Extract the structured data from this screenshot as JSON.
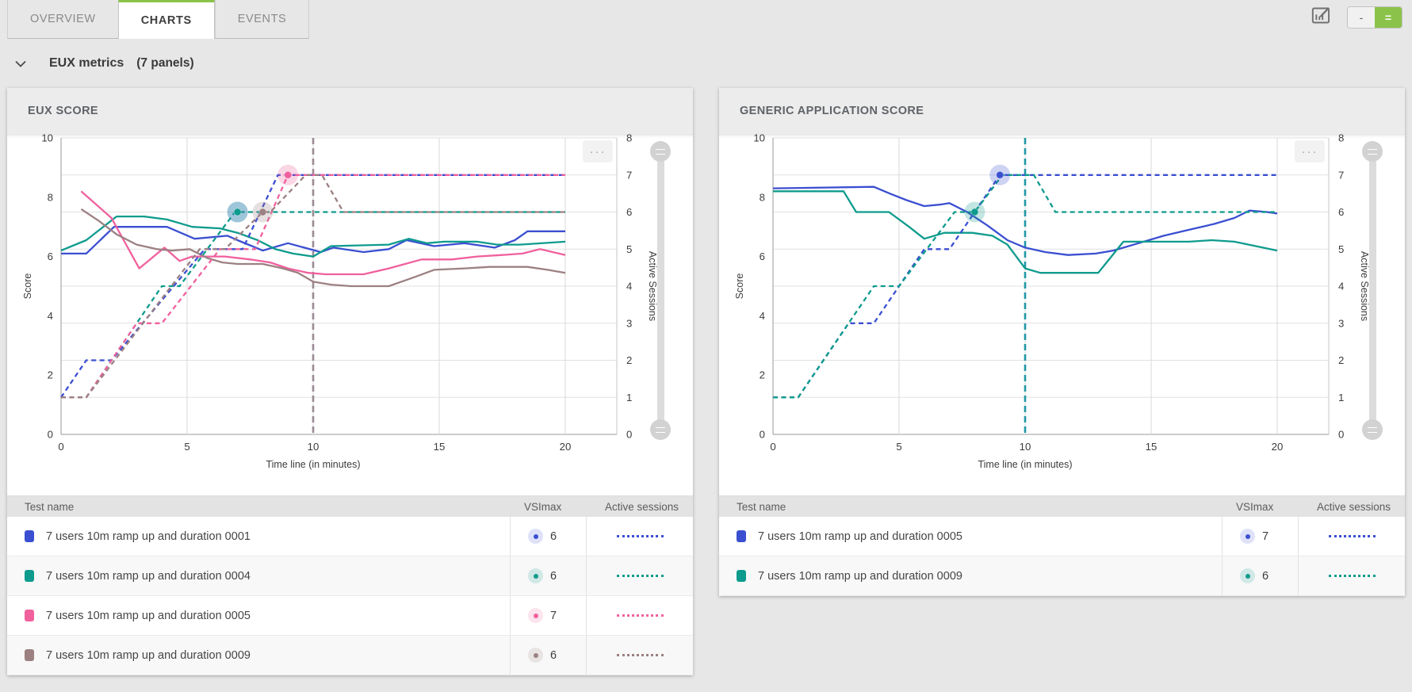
{
  "tabs": [
    {
      "label": "OVERVIEW",
      "active": false
    },
    {
      "label": "CHARTS",
      "active": true
    },
    {
      "label": "EVENTS",
      "active": false
    }
  ],
  "toolbar": {
    "layout_toggle": [
      {
        "label": "-",
        "active": false
      },
      {
        "label": "=",
        "active": true
      }
    ]
  },
  "section": {
    "title": "EUX metrics",
    "count": "(7 panels)"
  },
  "icons": {
    "menu": "···"
  },
  "colors": {
    "blue": "#3b4fd1",
    "teal": "#0e9b8d",
    "pink": "#f0609d",
    "brown": "#9c8082",
    "green": "#8bc34a",
    "vline_left": "#9b8b95",
    "vline_right": "#1f97a6"
  },
  "table_headers": {
    "test_name": "Test name",
    "vsimax": "VSImax",
    "active_sessions": "Active sessions"
  },
  "panels": [
    {
      "title": "EUX SCORE",
      "chart_index": 0,
      "rows": [
        {
          "color": "blue",
          "label": "7 users 10m ramp up and duration 0001",
          "vsimax": "6"
        },
        {
          "color": "teal",
          "label": "7 users 10m ramp up and duration 0004",
          "vsimax": "6"
        },
        {
          "color": "pink",
          "label": "7 users 10m ramp up and duration 0005",
          "vsimax": "7"
        },
        {
          "color": "brown",
          "label": "7 users 10m ramp up and duration 0009",
          "vsimax": "6"
        }
      ]
    },
    {
      "title": "GENERIC APPLICATION SCORE",
      "chart_index": 1,
      "rows": [
        {
          "color": "blue",
          "label": "7 users 10m ramp up and duration 0005",
          "vsimax": "7"
        },
        {
          "color": "teal",
          "label": "7 users 10m ramp up and duration 0009",
          "vsimax": "6"
        }
      ]
    }
  ],
  "chart_data": [
    {
      "type": "line",
      "title": "EUX SCORE",
      "xlabel": "Time line (in minutes)",
      "xlim": [
        0,
        22
      ],
      "xticks": [
        0,
        5,
        10,
        15,
        20
      ],
      "left_axis": {
        "label": "Score",
        "lim": [
          0,
          10
        ],
        "ticks": [
          0,
          2,
          4,
          6,
          8,
          10
        ]
      },
      "right_axis": {
        "label": "Active Sessions",
        "lim": [
          0,
          8
        ],
        "ticks": [
          0,
          1,
          2,
          3,
          4,
          5,
          6,
          7,
          8
        ]
      },
      "vline": {
        "x": 10,
        "color": "vline_left"
      },
      "series": [
        {
          "name": "7 users 10m ramp up and duration 0001 - score",
          "color": "blue",
          "axis": "left",
          "style": "solid",
          "points": [
            [
              0,
              6.1
            ],
            [
              1,
              6.1
            ],
            [
              2.1,
              7
            ],
            [
              4.2,
              7
            ],
            [
              5.3,
              6.6
            ],
            [
              6.6,
              6.7
            ],
            [
              7,
              6.55
            ],
            [
              8,
              6.2
            ],
            [
              9,
              6.45
            ],
            [
              10.3,
              6.15
            ],
            [
              10.8,
              6.3
            ],
            [
              12,
              6.15
            ],
            [
              13,
              6.25
            ],
            [
              13.7,
              6.55
            ],
            [
              14.8,
              6.35
            ],
            [
              16,
              6.45
            ],
            [
              17.2,
              6.3
            ],
            [
              18,
              6.55
            ],
            [
              18.5,
              6.85
            ],
            [
              20,
              6.85
            ]
          ]
        },
        {
          "name": "7 users 10m ramp up and duration 0004 - score",
          "color": "teal",
          "axis": "left",
          "style": "solid",
          "points": [
            [
              0,
              6.2
            ],
            [
              1,
              6.55
            ],
            [
              2.2,
              7.35
            ],
            [
              3.3,
              7.35
            ],
            [
              4.2,
              7.25
            ],
            [
              5.2,
              7
            ],
            [
              6.3,
              6.95
            ],
            [
              7,
              6.8
            ],
            [
              7.8,
              6.55
            ],
            [
              8.5,
              6.25
            ],
            [
              9.2,
              6.1
            ],
            [
              10,
              6
            ],
            [
              10.7,
              6.35
            ],
            [
              13,
              6.4
            ],
            [
              13.8,
              6.6
            ],
            [
              14.5,
              6.45
            ],
            [
              15.2,
              6.5
            ],
            [
              16.5,
              6.5
            ],
            [
              17.3,
              6.4
            ],
            [
              18.2,
              6.4
            ],
            [
              20,
              6.5
            ]
          ]
        },
        {
          "name": "7 users 10m ramp up and duration 0005 - score",
          "color": "pink",
          "axis": "left",
          "style": "solid",
          "points": [
            [
              0.8,
              8.2
            ],
            [
              2,
              7.3
            ],
            [
              3.1,
              5.6
            ],
            [
              4.1,
              6.3
            ],
            [
              4.7,
              5.85
            ],
            [
              5.2,
              6
            ],
            [
              6.5,
              6
            ],
            [
              7.5,
              5.9
            ],
            [
              8.3,
              5.8
            ],
            [
              9,
              5.6
            ],
            [
              9.8,
              5.45
            ],
            [
              10.5,
              5.4
            ],
            [
              12,
              5.4
            ],
            [
              13,
              5.6
            ],
            [
              14.3,
              5.9
            ],
            [
              15.5,
              5.9
            ],
            [
              16.5,
              6
            ],
            [
              17.5,
              6.05
            ],
            [
              18.3,
              6.1
            ],
            [
              19,
              6.25
            ],
            [
              20,
              6.05
            ]
          ]
        },
        {
          "name": "7 users 10m ramp up and duration 0009 - score",
          "color": "brown",
          "axis": "left",
          "style": "solid",
          "points": [
            [
              0.8,
              7.6
            ],
            [
              1.5,
              7.2
            ],
            [
              2.2,
              6.75
            ],
            [
              3,
              6.4
            ],
            [
              3.8,
              6.25
            ],
            [
              4.4,
              6.2
            ],
            [
              5.1,
              6.25
            ],
            [
              5.8,
              5.95
            ],
            [
              6.4,
              5.8
            ],
            [
              7,
              5.75
            ],
            [
              8,
              5.75
            ],
            [
              8.8,
              5.6
            ],
            [
              9.4,
              5.45
            ],
            [
              10,
              5.15
            ],
            [
              10.7,
              5.05
            ],
            [
              11.5,
              5
            ],
            [
              13,
              5
            ],
            [
              14,
              5.3
            ],
            [
              14.8,
              5.55
            ],
            [
              16,
              5.6
            ],
            [
              17,
              5.65
            ],
            [
              18.5,
              5.65
            ],
            [
              19.3,
              5.55
            ],
            [
              20,
              5.45
            ]
          ]
        },
        {
          "name": "7 users 10m ramp up and duration 0001 - active sessions",
          "color": "blue",
          "axis": "right",
          "style": "dashed",
          "points": [
            [
              0,
              1
            ],
            [
              1,
              2
            ],
            [
              2,
              2
            ],
            [
              5.7,
              5
            ],
            [
              7.2,
              5
            ],
            [
              8.6,
              7
            ],
            [
              20,
              7
            ]
          ]
        },
        {
          "name": "7 users 10m ramp up and duration 0004 - active sessions",
          "color": "teal",
          "axis": "right",
          "style": "dashed",
          "points": [
            [
              0,
              1
            ],
            [
              1,
              1
            ],
            [
              4,
              4
            ],
            [
              4.7,
              4
            ],
            [
              6.9,
              6
            ],
            [
              20,
              6
            ]
          ]
        },
        {
          "name": "7 users 10m ramp up and duration 0005 - active sessions",
          "color": "pink",
          "axis": "right",
          "style": "dashed",
          "points": [
            [
              0,
              1
            ],
            [
              1,
              1
            ],
            [
              3,
              3
            ],
            [
              4,
              3
            ],
            [
              6.3,
              5
            ],
            [
              7.7,
              5
            ],
            [
              9,
              7
            ],
            [
              20,
              7
            ]
          ]
        },
        {
          "name": "7 users 10m ramp up and duration 0009 - active sessions",
          "color": "brown",
          "axis": "right",
          "style": "dashed",
          "points": [
            [
              0,
              1
            ],
            [
              1,
              1
            ],
            [
              5.5,
              5
            ],
            [
              6.5,
              5
            ],
            [
              8,
              6
            ],
            [
              8.3,
              6
            ],
            [
              9.7,
              7
            ],
            [
              10.35,
              7
            ],
            [
              11.2,
              6
            ],
            [
              20,
              6
            ]
          ]
        }
      ],
      "markers": [
        {
          "x": 7,
          "y": 6,
          "color": "blue"
        },
        {
          "x": 7,
          "y": 6,
          "color": "teal"
        },
        {
          "x": 8,
          "y": 6,
          "color": "brown"
        },
        {
          "x": 9,
          "y": 7,
          "color": "pink"
        }
      ]
    },
    {
      "type": "line",
      "title": "GENERIC APPLICATION SCORE",
      "xlabel": "Time line (in minutes)",
      "xlim": [
        0,
        22
      ],
      "xticks": [
        0,
        5,
        10,
        15,
        20
      ],
      "left_axis": {
        "label": "Score",
        "lim": [
          0,
          10
        ],
        "ticks": [
          0,
          2,
          4,
          6,
          8,
          10
        ]
      },
      "right_axis": {
        "label": "Active Sessions",
        "lim": [
          0,
          8
        ],
        "ticks": [
          0,
          1,
          2,
          3,
          4,
          5,
          6,
          7,
          8
        ]
      },
      "vline": {
        "x": 10,
        "color": "vline_right"
      },
      "series": [
        {
          "name": "7 users 10m ramp up and duration 0005 - score",
          "color": "blue",
          "axis": "left",
          "style": "solid",
          "points": [
            [
              0,
              8.3
            ],
            [
              4,
              8.35
            ],
            [
              4.7,
              8.1
            ],
            [
              5.3,
              7.9
            ],
            [
              6,
              7.7
            ],
            [
              6.6,
              7.75
            ],
            [
              7,
              7.8
            ],
            [
              7.7,
              7.5
            ],
            [
              8.5,
              7.05
            ],
            [
              9.3,
              6.55
            ],
            [
              10,
              6.3
            ],
            [
              10.8,
              6.15
            ],
            [
              11.7,
              6.05
            ],
            [
              12.8,
              6.1
            ],
            [
              13.5,
              6.2
            ],
            [
              14.5,
              6.45
            ],
            [
              15.5,
              6.7
            ],
            [
              16.5,
              6.9
            ],
            [
              17.5,
              7.1
            ],
            [
              18.3,
              7.3
            ],
            [
              18.9,
              7.55
            ],
            [
              19.6,
              7.5
            ],
            [
              20,
              7.45
            ]
          ]
        },
        {
          "name": "7 users 10m ramp up and duration 0009 - score",
          "color": "teal",
          "axis": "left",
          "style": "solid",
          "points": [
            [
              0,
              8.2
            ],
            [
              2.8,
              8.2
            ],
            [
              3.3,
              7.5
            ],
            [
              4.6,
              7.5
            ],
            [
              5.4,
              7
            ],
            [
              6,
              6.6
            ],
            [
              6.8,
              6.8
            ],
            [
              7.9,
              6.8
            ],
            [
              8.7,
              6.7
            ],
            [
              9.3,
              6.4
            ],
            [
              10,
              5.6
            ],
            [
              10.6,
              5.45
            ],
            [
              12.9,
              5.45
            ],
            [
              13.9,
              6.5
            ],
            [
              16.5,
              6.5
            ],
            [
              17.4,
              6.55
            ],
            [
              18.3,
              6.5
            ],
            [
              20,
              6.2
            ]
          ]
        },
        {
          "name": "7 users 10m ramp up and duration 0005 - active sessions",
          "color": "blue",
          "axis": "right",
          "style": "dashed",
          "points": [
            [
              0,
              1
            ],
            [
              1,
              1
            ],
            [
              3,
              3
            ],
            [
              4,
              3
            ],
            [
              6,
              5
            ],
            [
              7,
              5
            ],
            [
              9,
              7
            ],
            [
              20,
              7
            ]
          ]
        },
        {
          "name": "7 users 10m ramp up and duration 0009 - active sessions",
          "color": "teal",
          "axis": "right",
          "style": "dashed",
          "points": [
            [
              0,
              1
            ],
            [
              1,
              1
            ],
            [
              4,
              4
            ],
            [
              5,
              4
            ],
            [
              7.2,
              6
            ],
            [
              8,
              6
            ],
            [
              9.1,
              7
            ],
            [
              10.35,
              7
            ],
            [
              11.2,
              6
            ],
            [
              20,
              6
            ]
          ]
        }
      ],
      "markers": [
        {
          "x": 9,
          "y": 7,
          "color": "blue"
        },
        {
          "x": 8,
          "y": 6,
          "color": "teal"
        }
      ]
    }
  ]
}
